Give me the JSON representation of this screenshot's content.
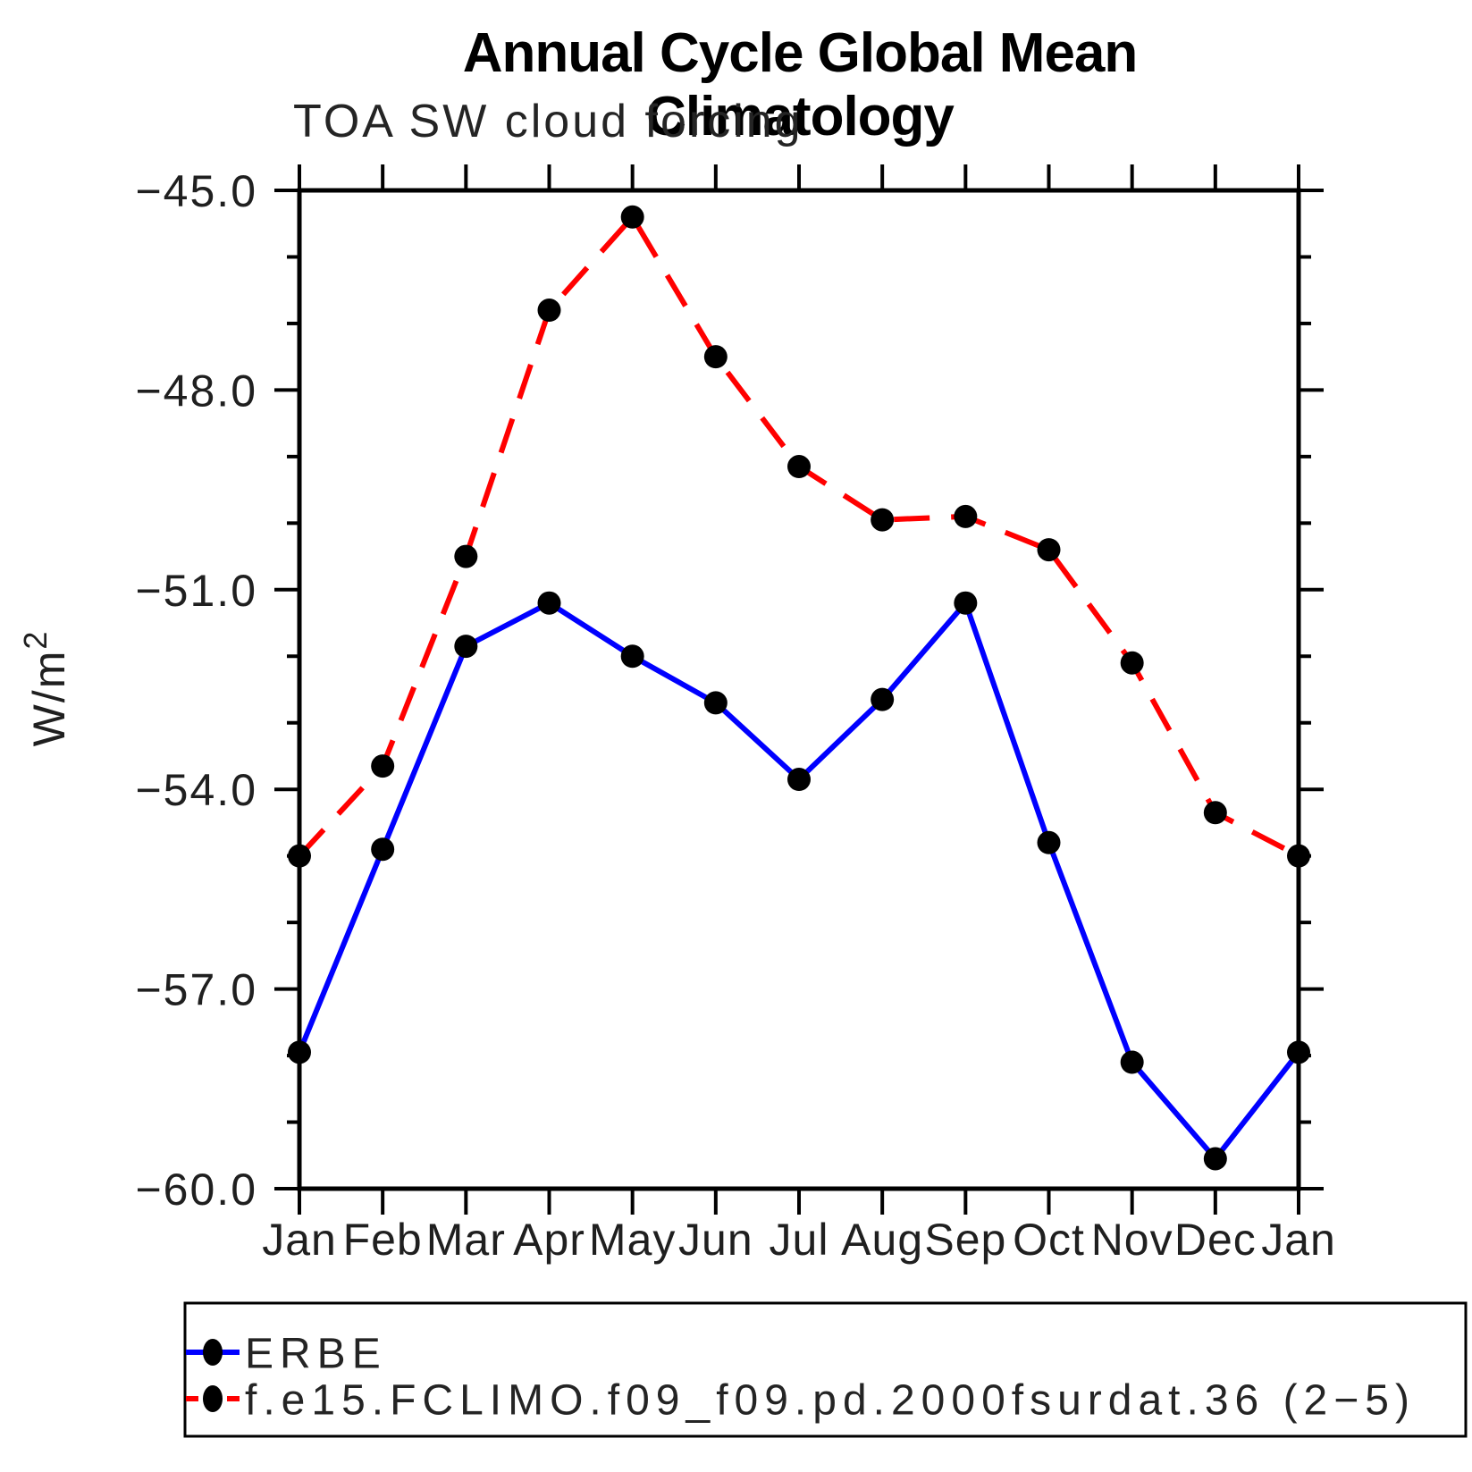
{
  "page": {
    "title": "Annual Cycle Global Mean Climatology",
    "subtitle": "TOA SW cloud forcing"
  },
  "chart_data": {
    "type": "line",
    "title": "Annual Cycle Global Mean Climatology",
    "subtitle": "TOA SW cloud forcing",
    "ylabel": {
      "base": "W/m",
      "exp": "2"
    },
    "categories": [
      "Jan",
      "Feb",
      "Mar",
      "Apr",
      "May",
      "Jun",
      "Jul",
      "Aug",
      "Sep",
      "Oct",
      "Nov",
      "Dec",
      "Jan"
    ],
    "ylim": [
      -60.0,
      -45.0
    ],
    "ytick_values": [
      -45,
      -48,
      -51,
      -54,
      -57,
      -60
    ],
    "ytick_labels": [
      "−45.0",
      "−48.0",
      "−51.0",
      "−54.0",
      "−57.0",
      "−60.0"
    ],
    "ytick_minor_step": 1.0,
    "grid": false,
    "legend_position": "bottom-left-box",
    "marker": "filled-circle",
    "marker_color": "#000000",
    "series": [
      {
        "name": "ERBE",
        "color": "#0000ff",
        "line_style": "solid",
        "values": [
          -57.95,
          -54.9,
          -51.85,
          -51.2,
          -52.0,
          -52.7,
          -53.85,
          -52.65,
          -51.2,
          -54.8,
          -58.1,
          -59.55,
          -57.95
        ]
      },
      {
        "name": "f.e15.FCLIMO.f09_f09.pd.2000fsurdat.36 (2−5)",
        "color": "#ff0000",
        "line_style": "dashed",
        "values": [
          -55.0,
          -53.65,
          -50.5,
          -46.8,
          -45.4,
          -47.5,
          -49.15,
          -49.95,
          -49.9,
          -50.4,
          -52.1,
          -54.35,
          -55.0
        ]
      }
    ]
  }
}
